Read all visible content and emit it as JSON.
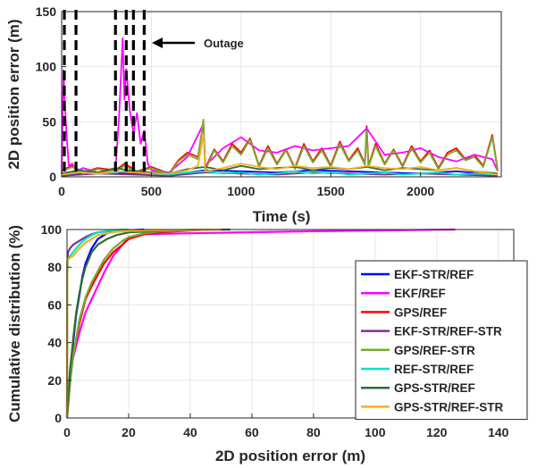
{
  "chart_data": [
    {
      "type": "line",
      "xlabel": "Time (s)",
      "ylabel": "2D position error (m)",
      "xlim": [
        0,
        2450
      ],
      "ylim": [
        0,
        150
      ],
      "xticks": [
        "0",
        "500",
        "1000",
        "1500",
        "2000"
      ],
      "yticks": [
        "0",
        "50",
        "100",
        "150"
      ],
      "grid": true,
      "annotation": "Outage",
      "outage_bounds": [
        15,
        80,
        300,
        360,
        400,
        460
      ],
      "series": [
        {
          "name": "GPS/REF",
          "color": "#ff0000",
          "x": [
            0,
            60,
            120,
            200,
            300,
            350,
            420,
            500,
            600,
            650,
            700,
            760,
            790,
            800,
            850,
            900,
            950,
            1000,
            1050,
            1100,
            1150,
            1200,
            1250,
            1300,
            1350,
            1400,
            1450,
            1500,
            1550,
            1600,
            1650,
            1690,
            1700,
            1710,
            1750,
            1800,
            1850,
            1900,
            1950,
            2000,
            2050,
            2100,
            2150,
            2200,
            2250,
            2300,
            2350,
            2400,
            2430
          ],
          "y": [
            6,
            10,
            4,
            8,
            6,
            12,
            5,
            9,
            3,
            15,
            22,
            18,
            50,
            8,
            25,
            14,
            30,
            22,
            35,
            10,
            28,
            12,
            25,
            8,
            30,
            14,
            26,
            10,
            32,
            15,
            26,
            12,
            46,
            10,
            30,
            12,
            25,
            10,
            28,
            14,
            24,
            8,
            22,
            26,
            16,
            20,
            10,
            38,
            6
          ]
        },
        {
          "name": "EKF/REF",
          "color": "#ff00ff",
          "x": [
            0,
            10,
            20,
            30,
            40,
            60,
            80,
            120,
            200,
            300,
            320,
            340,
            350,
            360,
            380,
            400,
            420,
            440,
            460,
            480,
            500,
            600,
            700,
            790,
            800,
            900,
            1000,
            1100,
            1200,
            1300,
            1400,
            1500,
            1600,
            1700,
            1800,
            1900,
            2000,
            2100,
            2200,
            2300,
            2400,
            2430
          ],
          "y": [
            3,
            97,
            60,
            32,
            10,
            12,
            5,
            8,
            4,
            6,
            55,
            126,
            70,
            98,
            60,
            40,
            58,
            30,
            42,
            12,
            6,
            4,
            18,
            48,
            10,
            26,
            36,
            24,
            22,
            28,
            24,
            26,
            28,
            44,
            20,
            22,
            26,
            18,
            14,
            20,
            16,
            5
          ]
        },
        {
          "name": "EKF-STR/REF",
          "color": "#0000ff",
          "x": [
            0,
            200,
            400,
            600,
            800,
            1000,
            1200,
            1400,
            1600,
            1800,
            2000,
            2200,
            2430
          ],
          "y": [
            2,
            4,
            3,
            2,
            6,
            5,
            4,
            6,
            5,
            4,
            3,
            5,
            2
          ]
        },
        {
          "name": "EKF-STR/REF-STR",
          "color": "#7e2f8e",
          "x": [
            0,
            200,
            400,
            600,
            800,
            1000,
            1200,
            1400,
            1600,
            1800,
            2000,
            2200,
            2430
          ],
          "y": [
            1,
            3,
            2,
            1,
            4,
            3,
            2,
            4,
            3,
            2,
            3,
            2,
            1
          ]
        },
        {
          "name": "GPS/REF-STR",
          "color": "#77ac30",
          "x": [
            0,
            60,
            120,
            200,
            300,
            350,
            420,
            500,
            600,
            650,
            700,
            760,
            790,
            800,
            850,
            900,
            950,
            1000,
            1050,
            1100,
            1150,
            1200,
            1250,
            1300,
            1350,
            1400,
            1450,
            1500,
            1550,
            1600,
            1650,
            1690,
            1700,
            1710,
            1750,
            1800,
            1850,
            1900,
            1950,
            2000,
            2050,
            2100,
            2150,
            2200,
            2250,
            2300,
            2350,
            2400,
            2430
          ],
          "y": [
            5,
            9,
            3,
            7,
            5,
            10,
            4,
            8,
            2,
            14,
            20,
            16,
            52,
            6,
            24,
            13,
            28,
            20,
            34,
            9,
            26,
            11,
            24,
            7,
            28,
            13,
            24,
            9,
            30,
            14,
            24,
            11,
            42,
            9,
            28,
            11,
            24,
            9,
            26,
            13,
            22,
            7,
            20,
            24,
            15,
            18,
            9,
            36,
            5
          ]
        },
        {
          "name": "REF-STR/REF",
          "color": "#00e5c5",
          "x": [
            0,
            100,
            200,
            300,
            400,
            500,
            600,
            700,
            800,
            900,
            1000,
            1100,
            1200,
            1300,
            1400,
            1500,
            1600,
            1700,
            1800,
            1900,
            2000,
            2100,
            2200,
            2300,
            2430
          ],
          "y": [
            2,
            5,
            3,
            4,
            6,
            3,
            2,
            4,
            5,
            3,
            4,
            2,
            3,
            5,
            3,
            4,
            2,
            3,
            4,
            2,
            3,
            4,
            2,
            3,
            2
          ]
        },
        {
          "name": "GPS-STR/REF",
          "color": "#2e6b3a",
          "x": [
            0,
            100,
            200,
            300,
            400,
            500,
            600,
            700,
            800,
            900,
            1000,
            1100,
            1200,
            1300,
            1400,
            1500,
            1600,
            1700,
            1800,
            1900,
            2000,
            2100,
            2200,
            2300,
            2430
          ],
          "y": [
            3,
            6,
            4,
            8,
            5,
            4,
            3,
            7,
            9,
            6,
            10,
            7,
            8,
            9,
            6,
            8,
            7,
            9,
            6,
            8,
            7,
            6,
            8,
            5,
            3
          ]
        },
        {
          "name": "GPS-STR/REF-STR",
          "color": "#f5b121",
          "x": [
            0,
            100,
            200,
            300,
            400,
            500,
            600,
            700,
            760,
            790,
            800,
            900,
            1000,
            1100,
            1200,
            1300,
            1400,
            1500,
            1600,
            1700,
            1800,
            1900,
            2000,
            2100,
            2200,
            2300,
            2430
          ],
          "y": [
            2,
            4,
            3,
            5,
            4,
            3,
            3,
            6,
            10,
            38,
            5,
            8,
            12,
            9,
            7,
            10,
            8,
            9,
            7,
            10,
            8,
            7,
            9,
            6,
            8,
            5,
            2
          ]
        }
      ]
    },
    {
      "type": "line",
      "xlabel": "2D position error (m)",
      "ylabel": "Cumulative distribution (%)",
      "xlim": [
        0,
        145
      ],
      "ylim": [
        0,
        100
      ],
      "xticks": [
        "0",
        "20",
        "40",
        "60",
        "80",
        "100",
        "120",
        "140"
      ],
      "yticks": [
        "0",
        "20",
        "40",
        "60",
        "80",
        "100"
      ],
      "grid": true,
      "legend_position": "right",
      "series": [
        {
          "name": "EKF-STR/REF",
          "color": "#0000ff",
          "x": [
            0,
            0.5,
            1,
            2,
            3,
            4,
            5,
            6,
            8,
            10,
            13,
            16,
            20,
            25
          ],
          "y": [
            0,
            10,
            25,
            40,
            55,
            65,
            75,
            82,
            90,
            95,
            98,
            99,
            99.6,
            100
          ]
        },
        {
          "name": "EKF/REF",
          "color": "#ff00ff",
          "x": [
            0,
            0.5,
            1,
            2,
            4,
            6,
            8,
            10,
            12,
            15,
            18,
            20,
            25,
            40,
            60,
            80,
            100,
            120,
            126
          ],
          "y": [
            0,
            12,
            22,
            32,
            45,
            56,
            63,
            70,
            77,
            86,
            92,
            96,
            97.5,
            98,
            98.6,
            99.1,
            99.5,
            99.9,
            100
          ]
        },
        {
          "name": "GPS/REF",
          "color": "#ff0000",
          "x": [
            0,
            0.5,
            1,
            2,
            4,
            6,
            8,
            10,
            12,
            15,
            18,
            20,
            25,
            30,
            40,
            46
          ],
          "y": [
            0,
            10,
            20,
            33,
            50,
            63,
            70,
            76,
            82,
            88,
            92,
            95,
            97.5,
            98.5,
            99.5,
            100
          ]
        },
        {
          "name": "EKF-STR/REF-STR",
          "color": "#7e2f8e",
          "x": [
            0,
            0.1,
            0.3,
            1,
            2,
            4,
            6,
            8,
            10,
            15,
            20
          ],
          "y": [
            0,
            82,
            88,
            90,
            92,
            94,
            96,
            97.5,
            98.5,
            99.5,
            100
          ]
        },
        {
          "name": "GPS/REF-STR",
          "color": "#77ac30",
          "x": [
            0,
            0.5,
            1,
            2,
            4,
            6,
            8,
            10,
            12,
            15,
            18,
            20,
            25,
            30,
            40,
            46
          ],
          "y": [
            0,
            9,
            18,
            33,
            52,
            64,
            72,
            78,
            84,
            90,
            94,
            96,
            98,
            99,
            99.6,
            100
          ]
        },
        {
          "name": "REF-STR/REF",
          "color": "#00e5c5",
          "x": [
            0,
            0.1,
            0.3,
            1,
            2,
            3,
            4,
            6,
            8,
            10,
            13,
            16,
            20
          ],
          "y": [
            0,
            75,
            84,
            86,
            88,
            90,
            92,
            95,
            97,
            98.5,
            99.3,
            99.8,
            100
          ]
        },
        {
          "name": "GPS-STR/REF",
          "color": "#2e6b3a",
          "x": [
            0,
            0.5,
            1,
            2,
            3,
            4,
            5,
            6,
            8,
            10,
            13,
            16,
            20,
            30,
            40,
            53
          ],
          "y": [
            0,
            12,
            25,
            42,
            56,
            66,
            74,
            80,
            88,
            92,
            95,
            97,
            98.5,
            99.3,
            99.8,
            100
          ]
        },
        {
          "name": "GPS-STR/REF-STR",
          "color": "#f5b121",
          "x": [
            0,
            0.1,
            0.3,
            1,
            2,
            3,
            4,
            6,
            8,
            10,
            13,
            16,
            20,
            30,
            40,
            50
          ],
          "y": [
            0,
            82,
            84,
            85,
            86,
            88,
            90,
            93,
            95,
            97,
            98,
            98.8,
            99.3,
            99.6,
            99.8,
            100
          ]
        }
      ]
    }
  ]
}
